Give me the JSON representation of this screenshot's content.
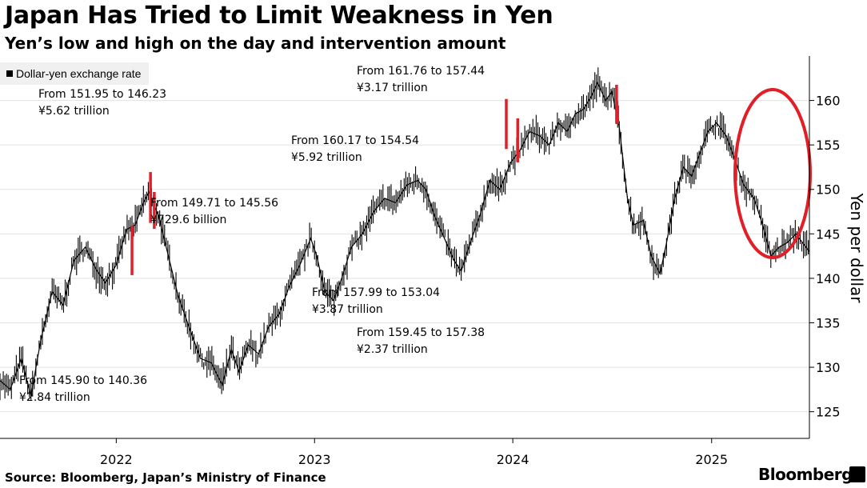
{
  "title": "Japan Has Tried to Limit Weakness in Yen",
  "subtitle": "Yen’s low and high on the day and intervention amount",
  "source": "Source: Bloomberg, Japan’s Ministry of Finance",
  "brand": "Bloomberg",
  "chart_data": {
    "type": "line",
    "ylabel": "Yen per dollar",
    "ylim": [
      122,
      165
    ],
    "y_ticks": [
      125,
      130,
      135,
      140,
      145,
      150,
      155,
      160
    ],
    "y_axis_side": "right",
    "grid": "horizontal",
    "x_range": [
      "2021-06-01",
      "2025-06-30"
    ],
    "x_ticks": [
      {
        "label": "2022",
        "date": "2022-01-01"
      },
      {
        "label": "2023",
        "date": "2023-01-01"
      },
      {
        "label": "2024",
        "date": "2024-01-01"
      },
      {
        "label": "2025",
        "date": "2025-01-01"
      }
    ],
    "legend": {
      "label": "Dollar-yen exchange rate",
      "placement": "top-left"
    },
    "colors": {
      "series": "#000000",
      "intervention": "#e0202a",
      "highlight_circle": "#e01f26"
    },
    "series": [
      {
        "name": "Dollar-yen exchange rate",
        "points": [
          [
            "2021-06-01",
            128.5
          ],
          [
            "2021-06-20",
            127.5
          ],
          [
            "2021-07-10",
            131.0
          ],
          [
            "2021-07-28",
            126.8
          ],
          [
            "2021-08-15",
            133.0
          ],
          [
            "2021-09-05",
            138.5
          ],
          [
            "2021-09-25",
            137.0
          ],
          [
            "2021-10-15",
            142.0
          ],
          [
            "2021-11-05",
            143.5
          ],
          [
            "2021-11-25",
            141.0
          ],
          [
            "2021-12-12",
            139.5
          ],
          [
            "2022-01-01",
            141.5
          ],
          [
            "2022-01-20",
            145.5
          ],
          [
            "2022-02-05",
            146.0
          ],
          [
            "2022-02-20",
            148.5
          ],
          [
            "2022-03-02",
            149.7
          ],
          [
            "2022-03-20",
            147.0
          ],
          [
            "2022-04-05",
            143.0
          ],
          [
            "2022-04-25",
            138.0
          ],
          [
            "2022-05-15",
            134.5
          ],
          [
            "2022-06-05",
            131.0
          ],
          [
            "2022-06-25",
            130.5
          ],
          [
            "2022-07-15",
            128.0
          ],
          [
            "2022-08-01",
            132.0
          ],
          [
            "2022-08-15",
            129.5
          ],
          [
            "2022-09-01",
            132.5
          ],
          [
            "2022-09-20",
            131.5
          ],
          [
            "2022-10-08",
            134.5
          ],
          [
            "2022-10-28",
            136.0
          ],
          [
            "2022-11-15",
            139.0
          ],
          [
            "2022-12-05",
            141.5
          ],
          [
            "2022-12-25",
            144.5
          ],
          [
            "2023-01-05",
            142.5
          ],
          [
            "2023-01-20",
            138.5
          ],
          [
            "2023-02-05",
            137.5
          ],
          [
            "2023-02-20",
            140.0
          ],
          [
            "2023-03-10",
            143.5
          ],
          [
            "2023-03-30",
            145.0
          ],
          [
            "2023-04-20",
            147.5
          ],
          [
            "2023-05-10",
            149.0
          ],
          [
            "2023-05-30",
            148.5
          ],
          [
            "2023-06-20",
            150.5
          ],
          [
            "2023-07-10",
            151.0
          ],
          [
            "2023-07-25",
            150.0
          ],
          [
            "2023-08-10",
            147.0
          ],
          [
            "2023-08-28",
            144.5
          ],
          [
            "2023-09-15",
            142.0
          ],
          [
            "2023-09-28",
            140.8
          ],
          [
            "2023-10-12",
            143.5
          ],
          [
            "2023-11-01",
            147.0
          ],
          [
            "2023-11-20",
            151.0
          ],
          [
            "2023-12-08",
            150.0
          ],
          [
            "2023-12-28",
            153.0
          ],
          [
            "2024-01-15",
            154.5
          ],
          [
            "2024-02-01",
            156.5
          ],
          [
            "2024-02-20",
            156.0
          ],
          [
            "2024-03-08",
            155.0
          ],
          [
            "2024-03-25",
            157.5
          ],
          [
            "2024-04-10",
            156.5
          ],
          [
            "2024-04-25",
            158.5
          ],
          [
            "2024-05-10",
            159.0
          ],
          [
            "2024-05-25",
            160.5
          ],
          [
            "2024-06-05",
            162.0
          ],
          [
            "2024-06-20",
            160.0
          ],
          [
            "2024-07-01",
            161.0
          ],
          [
            "2024-07-15",
            157.0
          ],
          [
            "2024-07-30",
            149.0
          ],
          [
            "2024-08-10",
            146.0
          ],
          [
            "2024-08-28",
            146.5
          ],
          [
            "2024-09-12",
            142.5
          ],
          [
            "2024-09-28",
            140.5
          ],
          [
            "2024-10-10",
            144.0
          ],
          [
            "2024-10-25",
            149.0
          ],
          [
            "2024-11-10",
            152.5
          ],
          [
            "2024-11-25",
            151.5
          ],
          [
            "2024-12-10",
            154.0
          ],
          [
            "2024-12-25",
            156.5
          ],
          [
            "2025-01-10",
            157.5
          ],
          [
            "2025-01-28",
            156.0
          ],
          [
            "2025-02-15",
            153.0
          ],
          [
            "2025-03-01",
            150.5
          ],
          [
            "2025-03-20",
            149.0
          ],
          [
            "2025-04-05",
            146.0
          ],
          [
            "2025-04-20",
            142.5
          ],
          [
            "2025-05-05",
            143.5
          ],
          [
            "2025-05-20",
            144.0
          ],
          [
            "2025-06-05",
            145.0
          ],
          [
            "2025-06-30",
            143.0
          ]
        ]
      }
    ],
    "interventions": [
      {
        "from": "145.90",
        "to": "140.36",
        "amount": "¥2.84 trillion",
        "date": "2022-01-30",
        "high": 145.9,
        "low": 140.36
      },
      {
        "from": "151.95",
        "to": "146.23",
        "amount": "¥5.62 trillion",
        "date": "2022-03-05",
        "high": 151.95,
        "low": 146.23
      },
      {
        "from": "149.71",
        "to": "145.56",
        "amount": "¥729.6 billion",
        "date": "2022-03-12",
        "high": 149.71,
        "low": 145.56
      },
      {
        "from": "160.17",
        "to": "154.54",
        "amount": "¥5.92 trillion",
        "date": "2023-12-20",
        "high": 160.17,
        "low": 154.54
      },
      {
        "from": "157.99",
        "to": "153.04",
        "amount": "¥3.87 trillion",
        "date": "2024-01-10",
        "high": 157.99,
        "low": 153.04
      },
      {
        "from": "161.76",
        "to": "157.44",
        "amount": "¥3.17 trillion",
        "date": "2024-07-10",
        "high": 161.76,
        "low": 157.44
      },
      {
        "from": "159.45",
        "to": "157.38",
        "amount": "¥2.37 trillion",
        "date": "2024-07-12",
        "high": 159.45,
        "low": 157.38
      }
    ],
    "annotations": [
      {
        "line1": "From 145.90 to 140.36",
        "line2": "¥2.84 trillion"
      },
      {
        "line1": "From 151.95 to 146.23",
        "line2": "¥5.62 trillion"
      },
      {
        "line1": "From 149.71 to 145.56",
        "line2": "¥729.6 billion"
      },
      {
        "line1": "From 157.99 to 153.04",
        "line2": "¥3.87 trillion"
      },
      {
        "line1": "From 159.45 to 157.38",
        "line2": "¥2.37 trillion"
      },
      {
        "line1": "From 160.17 to 154.54",
        "line2": "¥5.92 trillion"
      },
      {
        "line1": "From 161.76 to 157.44",
        "line2": "¥3.17 trillion"
      }
    ]
  }
}
